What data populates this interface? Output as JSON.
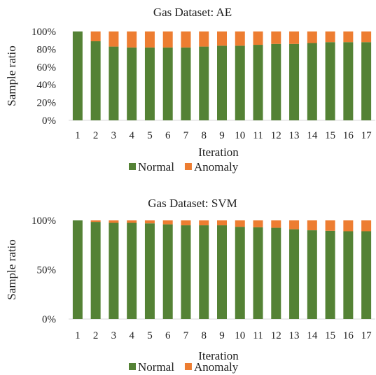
{
  "chart_data": [
    {
      "type": "bar",
      "stacked": true,
      "title": "Gas Dataset: AE",
      "xlabel": "Iteration",
      "ylabel": "Sample ratio",
      "ylim": [
        0,
        100
      ],
      "yticks": [
        "0%",
        "20%",
        "40%",
        "60%",
        "80%",
        "100%"
      ],
      "categories": [
        "1",
        "2",
        "3",
        "4",
        "5",
        "6",
        "7",
        "8",
        "9",
        "10",
        "11",
        "12",
        "13",
        "14",
        "15",
        "16",
        "17"
      ],
      "series": [
        {
          "name": "Normal",
          "color": "#548235",
          "values": [
            100,
            89,
            83,
            82,
            82,
            82,
            82,
            83,
            84,
            84,
            85,
            86,
            86,
            87,
            88,
            88,
            88
          ]
        },
        {
          "name": "Anomaly",
          "color": "#ED7D31",
          "values": [
            0,
            11,
            17,
            18,
            18,
            18,
            18,
            17,
            16,
            16,
            15,
            14,
            14,
            13,
            12,
            12,
            12
          ]
        }
      ],
      "legend": "bottom",
      "grid": false
    },
    {
      "type": "bar",
      "stacked": true,
      "title": "Gas Dataset: SVM",
      "xlabel": "Iteration",
      "ylabel": "Sample ratio",
      "ylim": [
        0,
        100
      ],
      "yticks": [
        "0%",
        "50%",
        "100%"
      ],
      "categories": [
        "1",
        "2",
        "3",
        "4",
        "5",
        "6",
        "7",
        "8",
        "9",
        "10",
        "11",
        "12",
        "13",
        "14",
        "15",
        "16",
        "17"
      ],
      "series": [
        {
          "name": "Normal",
          "color": "#548235",
          "values": [
            100,
            98.5,
            97.5,
            97.5,
            97,
            96,
            95,
            95,
            95,
            93.5,
            93,
            92.5,
            91,
            90,
            89.5,
            89,
            89
          ]
        },
        {
          "name": "Anomaly",
          "color": "#ED7D31",
          "values": [
            0,
            1.5,
            2.5,
            2.5,
            3,
            4,
            5,
            5,
            5,
            6.5,
            7,
            7.5,
            9,
            10,
            10.5,
            11,
            11
          ]
        }
      ],
      "legend": "bottom",
      "grid": false
    }
  ]
}
